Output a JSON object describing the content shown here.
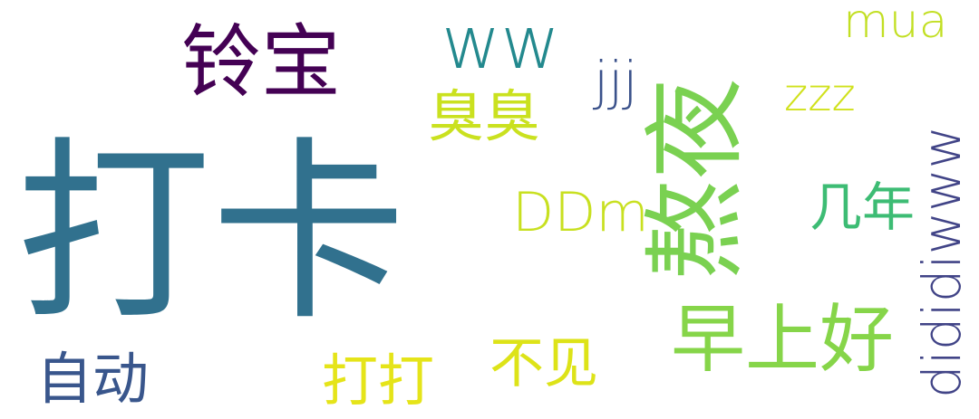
{
  "words": [
    {
      "text": "打卡",
      "color": "#31718e"
    },
    {
      "text": "熬夜",
      "color": "#7ad151"
    },
    {
      "text": "早上好",
      "color": "#86d549"
    },
    {
      "text": "铃宝",
      "color": "#440154"
    },
    {
      "text": "ww",
      "color": "#23898e"
    },
    {
      "text": "dididiwww",
      "color": "#414487"
    },
    {
      "text": "自动",
      "color": "#39568c"
    },
    {
      "text": "臭臭",
      "color": "#cae11f"
    },
    {
      "text": "DDm",
      "color": "#c8e020"
    },
    {
      "text": "打打",
      "color": "#e5e419"
    },
    {
      "text": "不见",
      "color": "#dde318"
    },
    {
      "text": "mua",
      "color": "#c2df23"
    },
    {
      "text": "几年",
      "color": "#3dbc74"
    },
    {
      "text": "jjj",
      "color": "#3b528b"
    },
    {
      "text": "zzz",
      "color": "#d0e11c"
    }
  ]
}
